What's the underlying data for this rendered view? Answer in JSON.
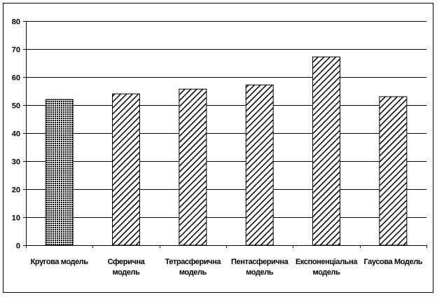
{
  "chart_data": {
    "type": "bar",
    "categories": [
      [
        "Кругова модель"
      ],
      [
        "Сферична",
        "модель"
      ],
      [
        "Тетрасферична",
        "модель"
      ],
      [
        "Пентасферична",
        "модель"
      ],
      [
        "Експоненціальна",
        "модель"
      ],
      [
        "Гаусова Модель"
      ]
    ],
    "values": [
      52,
      54,
      55.7,
      57.2,
      67.2,
      53
    ],
    "patterns": [
      "dots",
      "hatch",
      "hatch",
      "hatch",
      "hatch",
      "hatch"
    ],
    "ylim": [
      0,
      80
    ],
    "yticks": [
      0,
      10,
      20,
      30,
      40,
      50,
      60,
      70,
      80
    ],
    "grid": true,
    "title": "",
    "xlabel": "",
    "ylabel": ""
  }
}
